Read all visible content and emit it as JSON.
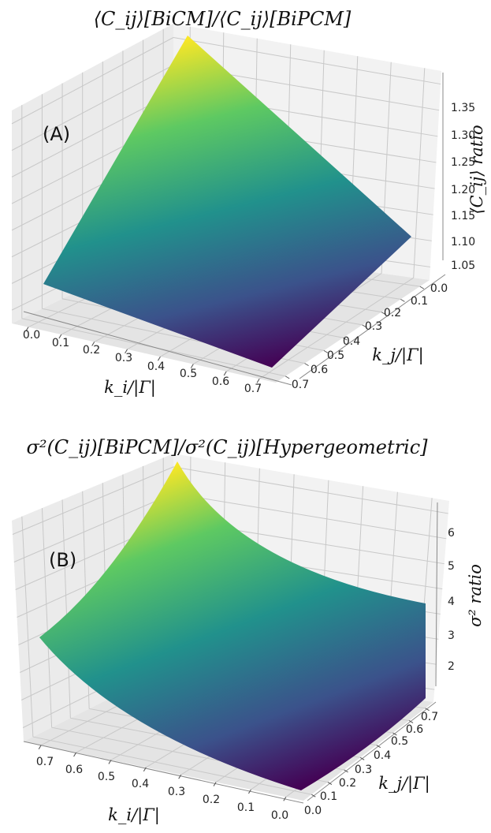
{
  "chart_data": [
    {
      "type": "surface",
      "title": "⟨C_ij⟩[BiCM]/⟨C_ij⟩[BiPCM]",
      "panel_label": "(A)",
      "xlabel": "k_i/|Γ|",
      "ylabel": "k_j/|Γ|",
      "zlabel": "⟨C_ij⟩ ratio",
      "x_ticks": [
        "0.0",
        "0.1",
        "0.2",
        "0.3",
        "0.4",
        "0.5",
        "0.6",
        "0.7"
      ],
      "y_ticks": [
        "0.0",
        "0.1",
        "0.2",
        "0.3",
        "0.4",
        "0.5",
        "0.6",
        "0.7"
      ],
      "z_ticks": [
        "1.05",
        "1.10",
        "1.15",
        "1.20",
        "1.25",
        "1.30",
        "1.35"
      ],
      "xlim": [
        0,
        0.75
      ],
      "ylim": [
        0,
        0.75
      ],
      "zlim": [
        1.0,
        1.39
      ],
      "corner_values": {
        "x0_y0": 1.0,
        "x0_y075": 1.39,
        "x075_y0": 1.0,
        "x075_y075": 1.09
      },
      "colormap": "viridis",
      "grid": true
    },
    {
      "type": "surface",
      "title": "σ²(C_ij)[BiPCM]/σ²(C_ij)[Hypergeometric]",
      "panel_label": "(B)",
      "xlabel": "k_i/|Γ|",
      "ylabel": "k_j/|Γ|",
      "zlabel": "σ² ratio",
      "x_ticks": [
        "0.7",
        "0.6",
        "0.5",
        "0.4",
        "0.3",
        "0.2",
        "0.1",
        "0.0"
      ],
      "y_ticks": [
        "0.0",
        "0.1",
        "0.2",
        "0.3",
        "0.4",
        "0.5",
        "0.6",
        "0.7"
      ],
      "z_ticks": [
        "2",
        "3",
        "4",
        "5",
        "6"
      ],
      "xlim": [
        0.75,
        0
      ],
      "ylim": [
        0,
        0.75
      ],
      "zlim": [
        1.0,
        6.7
      ],
      "corner_values": {
        "x0_y0": 1.0,
        "x0_y075": 4.0,
        "x075_y0": 4.0,
        "x075_y075": 6.7
      },
      "colormap": "viridis",
      "grid": true
    }
  ]
}
